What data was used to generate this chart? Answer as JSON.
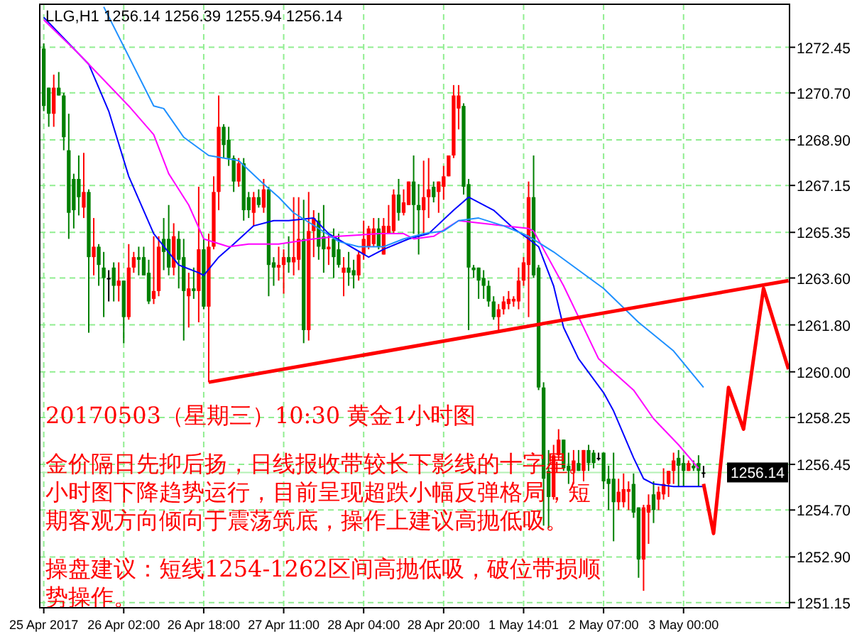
{
  "chart_data": {
    "type": "candlestick",
    "title": "LLG,H1  1256.14 1256.39 1255.94 1256.14",
    "categories": [
      "25 Apr 2017",
      null,
      null,
      null,
      null,
      null,
      null,
      null,
      null,
      null,
      null,
      null,
      null,
      null,
      null,
      null,
      "26 Apr 02:00",
      null,
      null,
      null,
      null,
      null,
      null,
      null,
      null,
      null,
      null,
      null,
      null,
      null,
      null,
      null,
      "26 Apr 18:00",
      null,
      null,
      null,
      null,
      null,
      null,
      null,
      null,
      null,
      null,
      null,
      null,
      null,
      null,
      null,
      "27 Apr 11:00",
      null,
      null,
      null,
      null,
      null,
      null,
      null,
      null,
      null,
      null,
      null,
      null,
      null,
      null,
      null,
      "28 Apr 04:00",
      null,
      null,
      null,
      null,
      null,
      null,
      null,
      null,
      null,
      null,
      null,
      null,
      null,
      null,
      null,
      "28 Apr 20:00",
      null,
      null,
      null,
      null,
      null,
      null,
      null,
      null,
      null,
      null,
      null,
      null,
      null,
      null,
      null,
      "1 May 14:01",
      null,
      null,
      null,
      null,
      null,
      null,
      null,
      null,
      null,
      null,
      null,
      null,
      null,
      null,
      null,
      "2 May 07:00",
      null,
      null,
      null,
      null,
      null,
      null,
      null,
      null,
      null,
      null,
      null,
      null,
      null,
      null,
      null,
      "3 May 00:00",
      null,
      null,
      null,
      null,
      null,
      null,
      null,
      null,
      null,
      null,
      null,
      null,
      null,
      null,
      null,
      null,
      null,
      null,
      null,
      null,
      null
    ],
    "ohlc": [
      [
        1272.4,
        1272.6,
        1270.0,
        1270.2
      ],
      [
        1270.9,
        1270.9,
        1269.4,
        1269.9
      ],
      [
        1269.9,
        1271.4,
        1269.4,
        1270.9
      ],
      [
        1270.9,
        1271.5,
        1270.6,
        1270.6
      ],
      [
        1270.6,
        1270.7,
        1268.5,
        1269.0
      ],
      [
        1268.5,
        1269.9,
        1265.1,
        1266.1
      ],
      [
        1267.4,
        1267.6,
        1265.5,
        1266.2
      ],
      [
        1267.4,
        1268.3,
        1266.0,
        1266.7
      ],
      [
        1266.3,
        1268.4,
        1265.9,
        1266.9
      ],
      [
        1266.9,
        1267.0,
        1261.5,
        1264.4
      ],
      [
        1264.4,
        1265.9,
        1263.7,
        1264.8
      ],
      [
        1264.8,
        1264.9,
        1263.3,
        1264.1
      ],
      [
        1264.0,
        1264.6,
        1262.1,
        1263.6
      ],
      [
        1263.6,
        1263.9,
        1262.7,
        1263.6
      ],
      [
        1264.0,
        1264.2,
        1262.7,
        1263.3
      ],
      [
        1263.3,
        1264.2,
        1262.7,
        1263.5
      ],
      [
        1263.5,
        1263.5,
        1261.1,
        1262.1
      ],
      [
        1262.1,
        1264.9,
        1262.0,
        1264.0
      ],
      [
        1264.0,
        1264.6,
        1263.8,
        1264.4
      ],
      [
        1264.4,
        1264.8,
        1263.7,
        1264.3
      ],
      [
        1264.4,
        1264.8,
        1263.7,
        1263.7
      ],
      [
        1263.8,
        1264.3,
        1262.6,
        1262.7
      ],
      [
        1262.8,
        1265.2,
        1262.6,
        1263.1
      ],
      [
        1263.1,
        1265.2,
        1262.9,
        1264.8
      ],
      [
        1265.1,
        1265.9,
        1263.9,
        1264.6
      ],
      [
        1265.1,
        1266.4,
        1263.7,
        1264.0
      ],
      [
        1264.0,
        1265.7,
        1263.7,
        1265.2
      ],
      [
        1265.1,
        1265.4,
        1263.2,
        1264.3
      ],
      [
        1264.4,
        1265.1,
        1261.2,
        1263.1
      ],
      [
        1262.9,
        1263.8,
        1261.7,
        1263.2
      ],
      [
        1263.2,
        1264.0,
        1262.8,
        1263.1
      ],
      [
        1263.1,
        1267.1,
        1261.9,
        1264.7
      ],
      [
        1264.7,
        1265.1,
        1262.4,
        1262.5
      ],
      [
        1262.5,
        1265.3,
        1259.6,
        1264.8
      ],
      [
        1264.8,
        1267.5,
        1264.7,
        1266.9
      ],
      [
        1266.9,
        1270.6,
        1266.2,
        1269.4
      ],
      [
        1269.4,
        1269.5,
        1268.2,
        1268.7
      ],
      [
        1268.9,
        1269.4,
        1267.9,
        1268.2
      ],
      [
        1268.2,
        1268.3,
        1266.9,
        1267.3
      ],
      [
        1267.3,
        1268.2,
        1267.1,
        1268.0
      ],
      [
        1268.0,
        1268.2,
        1265.8,
        1266.2
      ],
      [
        1266.7,
        1266.9,
        1265.9,
        1266.2
      ],
      [
        1266.1,
        1266.9,
        1265.6,
        1266.7
      ],
      [
        1266.7,
        1267.0,
        1266.3,
        1266.4
      ],
      [
        1266.3,
        1267.4,
        1266.1,
        1267.0
      ],
      [
        1267.0,
        1267.1,
        1262.9,
        1264.1
      ],
      [
        1264.2,
        1264.4,
        1263.3,
        1264.0
      ],
      [
        1264.0,
        1264.8,
        1263.5,
        1264.1
      ],
      [
        1264.1,
        1264.7,
        1263.0,
        1264.4
      ],
      [
        1264.4,
        1265.2,
        1263.8,
        1264.2
      ],
      [
        1264.2,
        1266.7,
        1263.7,
        1264.4
      ],
      [
        1264.3,
        1266.7,
        1263.9,
        1265.1
      ],
      [
        1265.1,
        1266.6,
        1261.1,
        1261.6
      ],
      [
        1261.6,
        1266.9,
        1261.2,
        1265.4
      ],
      [
        1265.4,
        1266.2,
        1264.4,
        1265.9
      ],
      [
        1265.8,
        1266.1,
        1264.3,
        1264.8
      ],
      [
        1265.2,
        1266.4,
        1263.8,
        1264.7
      ],
      [
        1264.7,
        1265.3,
        1264.1,
        1264.8
      ],
      [
        1265.1,
        1265.5,
        1263.6,
        1264.4
      ],
      [
        1264.7,
        1265.3,
        1264.0,
        1264.1
      ],
      [
        1263.8,
        1264.4,
        1262.9,
        1264.0
      ],
      [
        1264.0,
        1264.6,
        1263.3,
        1263.8
      ],
      [
        1263.9,
        1264.3,
        1263.2,
        1263.7
      ],
      [
        1263.7,
        1264.6,
        1263.5,
        1264.5
      ],
      [
        1264.5,
        1265.8,
        1264.3,
        1265.1
      ],
      [
        1264.8,
        1265.6,
        1264.7,
        1265.5
      ],
      [
        1264.9,
        1265.9,
        1264.8,
        1265.5
      ],
      [
        1265.5,
        1265.9,
        1264.7,
        1264.8
      ],
      [
        1264.5,
        1265.9,
        1264.5,
        1265.6
      ],
      [
        1265.3,
        1266.4,
        1265.3,
        1265.6
      ],
      [
        1265.4,
        1267.0,
        1265.3,
        1266.8
      ],
      [
        1266.8,
        1267.4,
        1265.8,
        1266.1
      ],
      [
        1266.1,
        1267.0,
        1266.0,
        1266.5
      ],
      [
        1266.4,
        1267.3,
        1266.4,
        1267.3
      ],
      [
        1267.3,
        1268.3,
        1265.3,
        1266.4
      ],
      [
        1266.4,
        1267.2,
        1264.5,
        1266.2
      ],
      [
        1266.2,
        1268.1,
        1265.3,
        1266.7
      ],
      [
        1266.7,
        1268.2,
        1265.9,
        1267.0
      ],
      [
        1267.1,
        1267.3,
        1266.5,
        1266.7
      ],
      [
        1266.9,
        1267.3,
        1266.1,
        1267.3
      ],
      [
        1267.1,
        1267.9,
        1266.6,
        1267.5
      ],
      [
        1267.5,
        1268.3,
        1267.5,
        1268.3
      ],
      [
        1268.3,
        1271.0,
        1268.2,
        1270.6
      ],
      [
        1270.1,
        1271.0,
        1269.3,
        1270.6
      ],
      [
        1270.2,
        1270.3,
        1266.8,
        1267.1
      ],
      [
        1267.2,
        1267.4,
        1261.6,
        1264.0
      ],
      [
        1264.0,
        1264.1,
        1263.6,
        1263.9
      ],
      [
        1264.0,
        1264.0,
        1262.8,
        1263.5
      ],
      [
        1263.6,
        1263.9,
        1262.8,
        1263.3
      ],
      [
        1263.3,
        1263.5,
        1262.5,
        1262.7
      ],
      [
        1262.7,
        1262.9,
        1262.0,
        1262.1
      ],
      [
        1262.1,
        1262.6,
        1261.6,
        1262.4
      ],
      [
        1262.4,
        1262.9,
        1262.2,
        1262.7
      ],
      [
        1262.6,
        1263.1,
        1262.4,
        1262.8
      ],
      [
        1262.7,
        1262.9,
        1262.5,
        1262.8
      ],
      [
        1262.7,
        1264.0,
        1262.4,
        1263.5
      ],
      [
        1263.5,
        1264.4,
        1263.3,
        1264.2
      ],
      [
        1264.1,
        1267.3,
        1262.1,
        1266.7
      ],
      [
        1266.7,
        1268.3,
        1263.6,
        1263.7
      ],
      [
        1264.0,
        1264.1,
        1259.3,
        1259.4
      ],
      [
        1259.4,
        1259.6,
        1254.1,
        1255.9
      ],
      [
        1256.2,
        1257.0,
        1254.0,
        1255.2
      ],
      [
        1255.2,
        1257.2,
        1255.1,
        1256.8
      ],
      [
        1256.8,
        1257.8,
        1256.6,
        1257.4
      ],
      [
        1257.4,
        1257.4,
        1256.2,
        1256.3
      ],
      [
        1256.4,
        1256.9,
        1255.7,
        1256.2
      ],
      [
        1256.2,
        1257.0,
        1255.7,
        1256.6
      ],
      [
        1256.5,
        1257.0,
        1256.2,
        1256.2
      ],
      [
        1256.2,
        1257.0,
        1255.8,
        1257.0
      ],
      [
        1257.0,
        1257.2,
        1256.2,
        1256.5
      ],
      [
        1256.9,
        1257.0,
        1256.3,
        1256.5
      ],
      [
        1256.7,
        1256.9,
        1256.6,
        1256.7
      ],
      [
        1256.9,
        1256.9,
        1255.5,
        1255.8
      ],
      [
        1255.9,
        1256.4,
        1254.7,
        1255.7
      ],
      [
        1255.9,
        1256.9,
        1253.5,
        1255.0
      ],
      [
        1255.0,
        1255.9,
        1254.7,
        1255.4
      ],
      [
        1255.0,
        1256.1,
        1254.8,
        1255.5
      ],
      [
        1255.4,
        1255.8,
        1254.7,
        1255.5
      ],
      [
        1255.7,
        1256.1,
        1254.4,
        1254.6
      ],
      [
        1254.8,
        1254.8,
        1252.1,
        1252.8
      ],
      [
        1252.8,
        1254.9,
        1251.6,
        1254.8
      ],
      [
        1254.6,
        1255.3,
        1253.4,
        1254.9
      ],
      [
        1255.3,
        1255.8,
        1254.2,
        1254.7
      ],
      [
        1255.1,
        1255.6,
        1254.7,
        1255.4
      ],
      [
        1255.3,
        1256.3,
        1255.1,
        1255.7
      ],
      [
        1255.7,
        1256.2,
        1255.2,
        1256.2
      ],
      [
        1256.2,
        1256.9,
        1255.7,
        1256.6
      ],
      [
        1256.7,
        1257.0,
        1255.6,
        1256.4
      ],
      [
        1256.5,
        1256.8,
        1255.6,
        1256.2
      ],
      [
        1256.2,
        1256.6,
        1256.2,
        1256.5
      ],
      [
        1256.4,
        1256.6,
        1256.2,
        1256.3
      ],
      [
        1256.5,
        1256.8,
        1255.6,
        1256.2
      ],
      [
        1256.14,
        1256.39,
        1255.94,
        1256.14
      ],
      null,
      null,
      null,
      null,
      null,
      null,
      null,
      null,
      null,
      null,
      null,
      null,
      null,
      null,
      null,
      null,
      null
    ],
    "colors": [
      "#008000",
      "#008000",
      "#ff0000",
      "#008000",
      "#008000",
      "#008000",
      "#008000",
      "#008000",
      "#ff0000",
      "#008000",
      "#ff0000",
      "#008000",
      "#008000",
      "#000000",
      "#008000",
      "#ff0000",
      "#008000",
      "#ff0000",
      "#ff0000",
      "#008000",
      "#008000",
      "#008000",
      "#ff0000",
      "#ff0000",
      "#008000",
      "#008000",
      "#ff0000",
      "#008000",
      "#008000",
      "#ff0000",
      "#008000",
      "#ff0000",
      "#008000",
      "#ff0000",
      "#ff0000",
      "#ff0000",
      "#008000",
      "#008000",
      "#008000",
      "#ff0000",
      "#008000",
      "#008000",
      "#ff0000",
      "#008000",
      "#ff0000",
      "#008000",
      "#008000",
      "#ff0000",
      "#ff0000",
      "#008000",
      "#ff0000",
      "#ff0000",
      "#008000",
      "#ff0000",
      "#ff0000",
      "#008000",
      "#008000",
      "#ff0000",
      "#008000",
      "#008000",
      "#ff0000",
      "#008000",
      "#008000",
      "#ff0000",
      "#ff0000",
      "#ff0000",
      "#ff0000",
      "#008000",
      "#ff0000",
      "#ff0000",
      "#ff0000",
      "#008000",
      "#ff0000",
      "#ff0000",
      "#008000",
      "#008000",
      "#ff0000",
      "#ff0000",
      "#008000",
      "#ff0000",
      "#ff0000",
      "#ff0000",
      "#ff0000",
      "#ff0000",
      "#008000",
      "#008000",
      "#008000",
      "#008000",
      "#008000",
      "#008000",
      "#008000",
      "#ff0000",
      "#ff0000",
      "#ff0000",
      "#ff0000",
      "#ff0000",
      "#ff0000",
      "#ff0000",
      "#008000",
      "#008000",
      "#008000",
      "#008000",
      "#ff0000",
      "#ff0000",
      "#008000",
      "#008000",
      "#ff0000",
      "#008000",
      "#ff0000",
      "#008000",
      "#008000",
      "#000000",
      "#008000",
      "#008000",
      "#008000",
      "#ff0000",
      "#ff0000",
      "#ff0000",
      "#008000",
      "#008000",
      "#ff0000",
      "#ff0000",
      "#008000",
      "#ff0000",
      "#ff0000",
      "#ff0000",
      "#ff0000",
      "#008000",
      "#008000",
      "#ff0000",
      "#008000",
      "#008000",
      "#000000",
      null,
      null,
      null,
      null,
      null,
      null,
      null,
      null,
      null,
      null,
      null,
      null,
      null,
      null,
      null,
      null,
      null
    ],
    "series": [
      {
        "type": "line",
        "color": "#0000ff",
        "values": [
          1273.6,
          null,
          null,
          null,
          null,
          null,
          null,
          null,
          null,
          1271.8,
          null,
          null,
          null,
          1270.0,
          null,
          null,
          null,
          1267.5,
          null,
          null,
          null,
          null,
          1265.3,
          null,
          null,
          null,
          null,
          1264.1,
          null,
          null,
          null,
          1263.8,
          1263.7,
          null,
          null,
          1264.4,
          null,
          null,
          1264.9,
          null,
          null,
          null,
          1265.6,
          null,
          null,
          null,
          1265.8,
          null,
          null,
          1265.8,
          null,
          null,
          null,
          null,
          1265.9,
          null,
          null,
          1265.3,
          null,
          null,
          null,
          null,
          null,
          null,
          null,
          1264.4,
          null,
          null,
          1264.7,
          null,
          null,
          null,
          null,
          1265.1,
          null,
          null,
          null,
          1265.3,
          null,
          null,
          null,
          null,
          1266.2,
          null,
          null,
          1266.7,
          null,
          null,
          null,
          null,
          1266.2,
          null,
          null,
          null,
          1265.5,
          null,
          null,
          1265.1,
          null,
          1264.8,
          null,
          null,
          1263.3,
          null,
          1261.7,
          null,
          null,
          1260.5,
          null,
          null,
          null,
          null,
          1259.2,
          null,
          1258.5,
          null,
          null,
          null,
          1256.7,
          null,
          1255.9,
          null,
          1255.7,
          null,
          null,
          null,
          1255.6,
          null,
          null,
          null,
          null,
          null,
          1255.6,
          null,
          null,
          null,
          null,
          null,
          null,
          null,
          null,
          null,
          null,
          null,
          null,
          null,
          null,
          null,
          null,
          null
        ]
      },
      {
        "type": "line",
        "color": "#ff00ff",
        "values": [
          1273.5,
          null,
          null,
          null,
          null,
          null,
          null,
          1272.2,
          null,
          null,
          null,
          null,
          1271.2,
          null,
          null,
          null,
          null,
          1270.2,
          null,
          null,
          null,
          null,
          1269.1,
          null,
          null,
          1267.6,
          null,
          null,
          null,
          1266.4,
          null,
          null,
          1265.1,
          null,
          null,
          null,
          null,
          1264.8,
          null,
          null,
          null,
          1264.9,
          null,
          null,
          null,
          null,
          null,
          1264.9,
          null,
          null,
          null,
          null,
          null,
          null,
          1265.1,
          null,
          null,
          null,
          null,
          1265.2,
          null,
          null,
          null,
          null,
          null,
          null,
          null,
          1265.3,
          null,
          null,
          null,
          null,
          1265.3,
          null,
          1265.1,
          null,
          null,
          null,
          1265.2,
          null,
          null,
          null,
          null,
          1265.8,
          null,
          null,
          null,
          null,
          null,
          null,
          null,
          null,
          1265.6,
          null,
          null,
          null,
          null,
          1265.5,
          1265.4,
          null,
          null,
          null,
          null,
          null,
          1263.3,
          null,
          null,
          null,
          null,
          null,
          null,
          1260.5,
          null,
          null,
          null,
          null,
          null,
          null,
          1259.3,
          null,
          null,
          null,
          1258.2,
          null,
          null,
          null,
          null,
          1257.2,
          null,
          null,
          null,
          1256.3,
          null,
          null,
          null,
          null,
          null,
          null,
          null,
          null,
          null,
          null,
          null,
          null,
          null,
          null,
          null,
          null,
          null,
          null
        ]
      },
      {
        "type": "line",
        "color": "#1e90ff",
        "values": [
          null,
          null,
          null,
          null,
          null,
          null,
          null,
          null,
          null,
          null,
          null,
          null,
          1274.0,
          null,
          null,
          null,
          null,
          null,
          null,
          null,
          null,
          null,
          1270.2,
          null,
          1270.1,
          null,
          null,
          null,
          1269.0,
          null,
          null,
          null,
          null,
          1268.3,
          null,
          null,
          null,
          null,
          null,
          1268.1,
          null,
          null,
          null,
          null,
          1267.2,
          null,
          null,
          1266.7,
          null,
          null,
          1266.1,
          null,
          null,
          null,
          null,
          1265.5,
          null,
          null,
          null,
          1265.0,
          null,
          null,
          null,
          1264.8,
          null,
          null,
          null,
          null,
          1264.8,
          null,
          null,
          null,
          1265.1,
          null,
          null,
          null,
          1265.3,
          null,
          null,
          null,
          1265.4,
          null,
          null,
          1265.8,
          null,
          null,
          null,
          1265.9,
          null,
          null,
          null,
          null,
          1265.6,
          null,
          null,
          null,
          null,
          1265.2,
          null,
          null,
          null,
          null,
          1264.6,
          null,
          null,
          null,
          null,
          1263.9,
          null,
          null,
          null,
          null,
          1263.2,
          null,
          null,
          null,
          null,
          null,
          null,
          1261.9,
          null,
          null,
          null,
          null,
          null,
          null,
          1260.8,
          null,
          null,
          null,
          null,
          null,
          1259.4,
          null,
          null,
          null,
          null,
          null,
          null,
          null,
          null,
          null,
          null,
          null,
          null,
          null,
          null,
          null,
          null,
          null
        ]
      },
      {
        "type": "line",
        "color": "#ff0000",
        "values": [
          null,
          null,
          null,
          null,
          null,
          null,
          null,
          null,
          null,
          null,
          null,
          null,
          null,
          null,
          null,
          null,
          null,
          null,
          null,
          null,
          null,
          null,
          null,
          null,
          null,
          null,
          null,
          null,
          null,
          null,
          null,
          null,
          null,
          1259.6,
          null,
          null,
          null,
          null,
          null,
          null,
          null,
          null,
          null,
          null,
          null,
          null,
          null,
          null,
          null,
          null,
          null,
          null,
          null,
          null,
          null,
          null,
          null,
          null,
          null,
          null,
          null,
          null,
          null,
          null,
          null,
          null,
          null,
          null,
          null,
          null,
          null,
          null,
          null,
          null,
          null,
          null,
          null,
          null,
          null,
          null,
          null,
          null,
          null,
          null,
          null,
          null,
          null,
          null,
          null,
          null,
          null,
          null,
          null,
          null,
          null,
          null,
          null,
          null,
          null,
          null,
          null,
          null,
          null,
          null,
          null,
          null,
          null,
          null,
          null,
          null,
          null,
          null,
          null,
          null,
          null,
          null,
          null,
          null,
          null,
          null,
          null,
          null,
          null,
          null,
          null,
          null,
          null,
          null,
          null,
          null,
          null,
          null,
          null,
          null,
          null,
          null,
          null,
          null,
          null,
          null,
          null,
          null,
          null,
          null,
          null,
          null,
          null,
          null,
          null,
          1263.5
        ]
      },
      {
        "type": "line",
        "color": "#ff0000",
        "values": [
          null,
          null,
          null,
          null,
          null,
          null,
          null,
          null,
          null,
          null,
          null,
          null,
          null,
          null,
          null,
          null,
          null,
          null,
          null,
          null,
          null,
          null,
          null,
          null,
          null,
          null,
          null,
          null,
          null,
          null,
          null,
          null,
          null,
          null,
          null,
          null,
          null,
          null,
          null,
          null,
          null,
          null,
          null,
          null,
          null,
          null,
          null,
          null,
          null,
          null,
          null,
          null,
          null,
          null,
          null,
          null,
          null,
          null,
          null,
          null,
          null,
          null,
          null,
          null,
          null,
          null,
          null,
          null,
          null,
          null,
          null,
          null,
          null,
          null,
          null,
          null,
          null,
          null,
          null,
          null,
          null,
          null,
          null,
          null,
          null,
          null,
          null,
          null,
          null,
          null,
          null,
          null,
          null,
          null,
          null,
          null,
          null,
          null,
          null,
          null,
          null,
          null,
          null,
          null,
          null,
          null,
          null,
          null,
          null,
          null,
          null,
          null,
          null,
          null,
          null,
          null,
          null,
          null,
          null,
          null,
          null,
          null,
          null,
          null,
          null,
          null,
          null,
          null,
          null,
          null,
          null,
          null,
          1255.7,
          null,
          1253.8,
          null,
          null,
          1259.4,
          null,
          null,
          1257.8,
          null,
          null,
          null,
          1263.2,
          null,
          null,
          null,
          null,
          1260.1
        ]
      }
    ],
    "ylim": [
      1250.95,
      1274.1
    ],
    "yticks": [
      1272.45,
      {
        "value": 1270.7,
        "label": "1270.70"
      },
      {
        "value": 1268.9,
        "label": "1268.90"
      },
      1267.15,
      1265.35,
      {
        "value": 1263.6,
        "label": "1263.60"
      },
      {
        "value": 1261.8,
        "label": "1261.80"
      },
      {
        "value": 1260,
        "label": "1260.00"
      },
      1258.25,
      1256.45,
      {
        "value": 1254.7,
        "label": "1254.70"
      },
      {
        "value": 1252.9,
        "label": "1252.90"
      },
      1251.15
    ],
    "grid": true,
    "ref_lines": [
      {
        "axis": "y",
        "value": 1256.14,
        "label": "1256.14",
        "color": "#b4f0b4"
      }
    ],
    "annotations": [
      "20170503（星期三）10:30 黄金1小时图",
      "金价隔日先抑后扬，日线报收带较长下影线的十字星。小时图下降趋势运行，目前呈现超跌小幅反弹格局，短期客观方向倾向于震荡筑底，操作上建议高抛低吸。",
      "操盘建议：短线1254-1262区间高抛低吸，破位带损顺势操作。"
    ]
  }
}
